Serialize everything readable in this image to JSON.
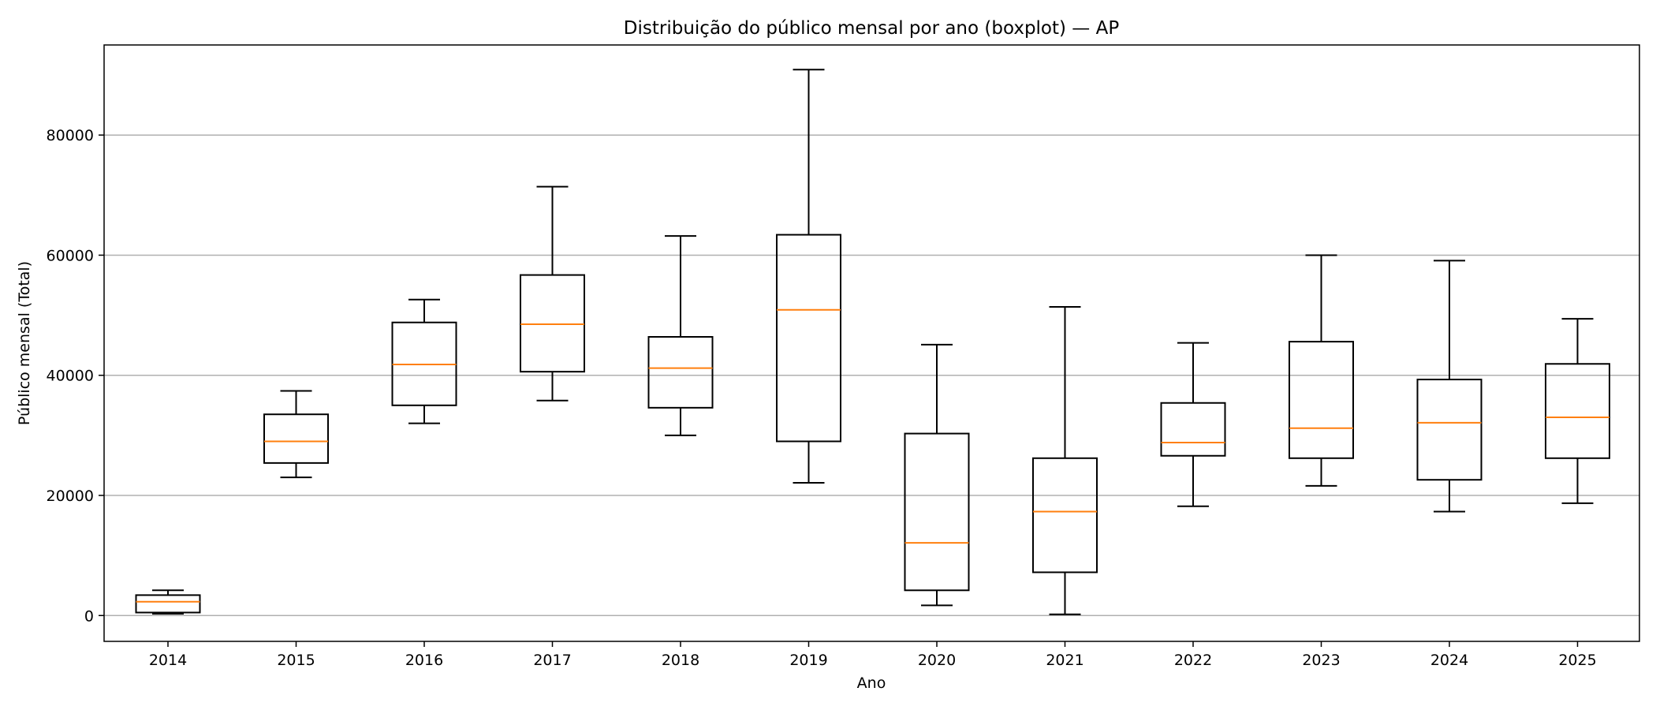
{
  "chart_data": {
    "type": "boxplot",
    "title": "Distribuição do público mensal por ano (boxplot) — AP",
    "xlabel": "Ano",
    "ylabel": "Público mensal (Total)",
    "ylim": [
      -4300,
      95000
    ],
    "yticks": [
      0,
      20000,
      40000,
      60000,
      80000
    ],
    "grid": "horizontal",
    "median_color": "#ff7f0e",
    "box_color": "#000000",
    "categories": [
      "2014",
      "2015",
      "2016",
      "2017",
      "2018",
      "2019",
      "2020",
      "2021",
      "2022",
      "2023",
      "2024",
      "2025"
    ],
    "boxes": [
      {
        "min": 300,
        "q1": 500,
        "median": 2300,
        "q3": 3400,
        "max": 4200
      },
      {
        "min": 23000,
        "q1": 25400,
        "median": 29000,
        "q3": 33500,
        "max": 37400
      },
      {
        "min": 32000,
        "q1": 35000,
        "median": 41800,
        "q3": 48800,
        "max": 52600
      },
      {
        "min": 35800,
        "q1": 40600,
        "median": 48500,
        "q3": 56700,
        "max": 71400
      },
      {
        "min": 30000,
        "q1": 34600,
        "median": 41200,
        "q3": 46400,
        "max": 63200
      },
      {
        "min": 22100,
        "q1": 29000,
        "median": 50900,
        "q3": 63400,
        "max": 90900
      },
      {
        "min": 1700,
        "q1": 4200,
        "median": 12100,
        "q3": 30300,
        "max": 45100
      },
      {
        "min": 200,
        "q1": 7200,
        "median": 17300,
        "q3": 26200,
        "max": 51400
      },
      {
        "min": 18200,
        "q1": 26600,
        "median": 28800,
        "q3": 35400,
        "max": 45400
      },
      {
        "min": 21600,
        "q1": 26200,
        "median": 31200,
        "q3": 45600,
        "max": 60000
      },
      {
        "min": 17300,
        "q1": 22600,
        "median": 32100,
        "q3": 39300,
        "max": 59100
      },
      {
        "min": 18700,
        "q1": 26200,
        "median": 33000,
        "q3": 41900,
        "max": 49400
      }
    ]
  }
}
